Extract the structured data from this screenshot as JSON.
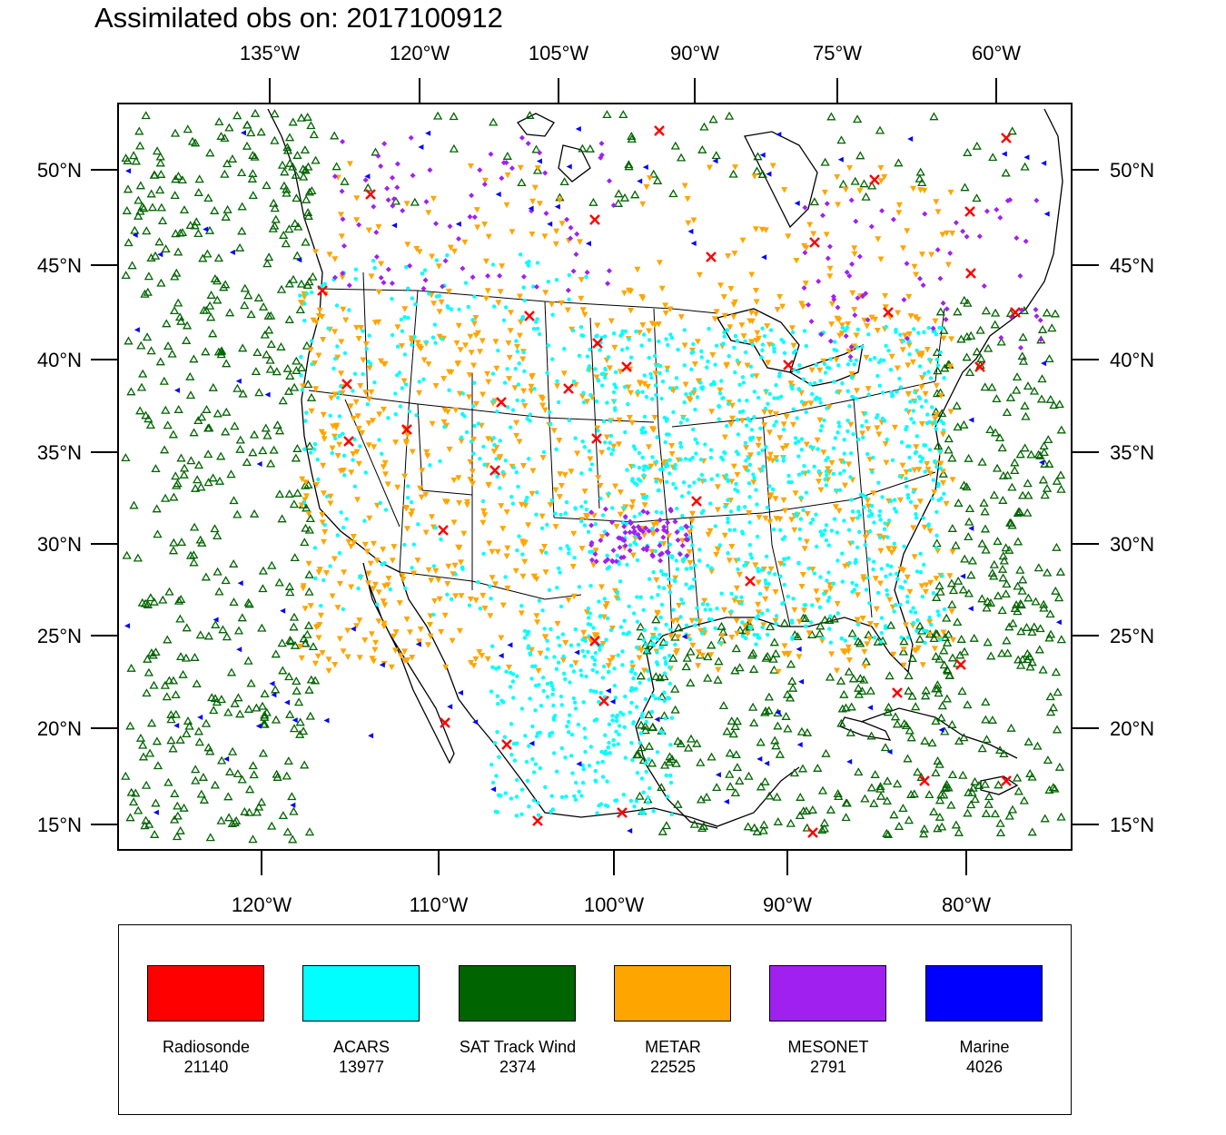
{
  "title": "Assimilated obs on: 2017100912",
  "axes": {
    "top_lon_labels": [
      "135°W",
      "120°W",
      "105°W",
      "90°W",
      "75°W",
      "60°W"
    ],
    "bottom_lon_labels": [
      "120°W",
      "110°W",
      "100°W",
      "90°W",
      "80°W"
    ],
    "left_lat_labels": [
      "50°N",
      "45°N",
      "40°N",
      "35°N",
      "30°N",
      "25°N",
      "20°N",
      "15°N"
    ],
    "right_lat_labels": [
      "50°N",
      "45°N",
      "40°N",
      "35°N",
      "30°N",
      "25°N",
      "20°N",
      "15°N"
    ]
  },
  "legend": [
    {
      "label": "Radiosonde",
      "count": "21140",
      "color": "#ff0000"
    },
    {
      "label": "ACARS",
      "count": "13977",
      "color": "#00ffff"
    },
    {
      "label": "SAT Track Wind",
      "count": "2374",
      "color": "#006400"
    },
    {
      "label": "METAR",
      "count": "22525",
      "color": "#ffa500"
    },
    {
      "label": "MESONET",
      "count": "2791",
      "color": "#a020f0"
    },
    {
      "label": "Marine",
      "count": "4026",
      "color": "#0000ff"
    }
  ]
}
